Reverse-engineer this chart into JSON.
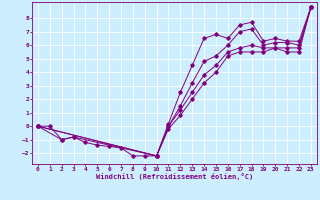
{
  "title": "",
  "xlabel": "Windchill (Refroidissement éolien,°C)",
  "ylabel": "",
  "bg_color": "#cceeff",
  "line_color": "#800080",
  "grid_color": "#ffffff",
  "xlim": [
    -0.5,
    23.5
  ],
  "ylim": [
    -2.8,
    9.2
  ],
  "xticks": [
    0,
    1,
    2,
    3,
    4,
    5,
    6,
    7,
    8,
    9,
    10,
    11,
    12,
    13,
    14,
    15,
    16,
    17,
    18,
    19,
    20,
    21,
    22,
    23
  ],
  "yticks": [
    -2,
    -1,
    0,
    1,
    2,
    3,
    4,
    5,
    6,
    7,
    8
  ],
  "series": [
    {
      "x": [
        0,
        1,
        2,
        3,
        4,
        5,
        6,
        7,
        8,
        9,
        10,
        11,
        12,
        13,
        14,
        15,
        16,
        17,
        18,
        19,
        20,
        21,
        22,
        23
      ],
      "y": [
        0.0,
        0.0,
        -1.0,
        -0.8,
        -1.2,
        -1.4,
        -1.5,
        -1.6,
        -2.2,
        -2.2,
        -2.2,
        0.2,
        2.5,
        4.5,
        6.5,
        6.8,
        6.5,
        7.5,
        7.7,
        6.3,
        6.5,
        6.3,
        6.3,
        8.8
      ]
    },
    {
      "x": [
        0,
        2,
        3,
        10,
        11,
        12,
        13,
        14,
        15,
        16,
        17,
        18,
        19,
        20,
        21,
        22,
        23
      ],
      "y": [
        0.0,
        -1.0,
        -0.8,
        -2.2,
        0.0,
        1.5,
        3.2,
        4.8,
        5.2,
        6.0,
        7.0,
        7.2,
        6.0,
        6.2,
        6.2,
        6.0,
        8.8
      ]
    },
    {
      "x": [
        0,
        10,
        11,
        12,
        13,
        14,
        15,
        16,
        17,
        18,
        19,
        20,
        21,
        22,
        23
      ],
      "y": [
        0.0,
        -2.2,
        0.0,
        1.2,
        2.5,
        3.8,
        4.5,
        5.5,
        5.8,
        6.0,
        5.8,
        5.8,
        5.8,
        5.8,
        8.8
      ]
    },
    {
      "x": [
        0,
        10,
        11,
        12,
        13,
        14,
        15,
        16,
        17,
        18,
        19,
        20,
        21,
        22,
        23
      ],
      "y": [
        0.0,
        -2.2,
        -0.2,
        0.8,
        2.0,
        3.2,
        4.0,
        5.2,
        5.5,
        5.5,
        5.5,
        5.8,
        5.5,
        5.5,
        8.8
      ]
    }
  ]
}
